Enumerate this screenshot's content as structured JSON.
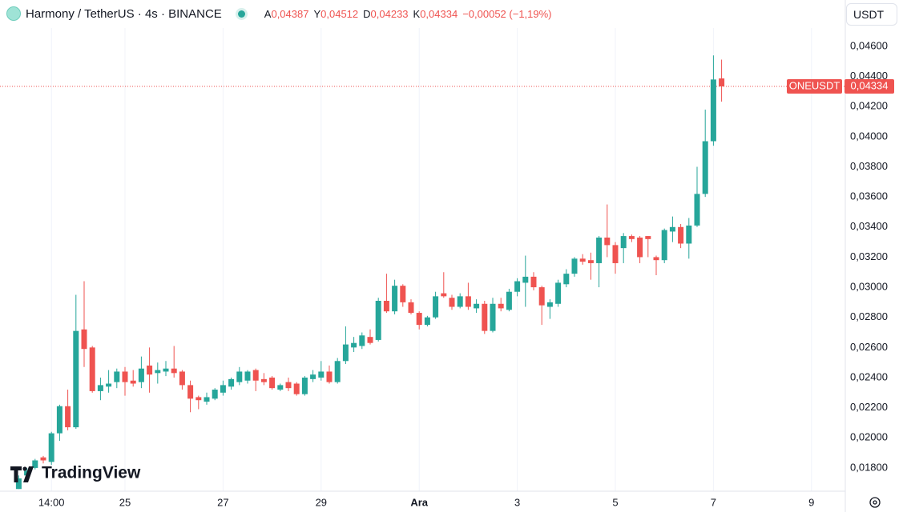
{
  "header": {
    "symbol": "Harmony / TetherUS · 4s · BINANCE",
    "open_key": "A",
    "open": "0,04387",
    "high_key": "Y",
    "high": "0,04512",
    "low_key": "D",
    "low": "0,04233",
    "close_key": "K",
    "close": "0,04334",
    "change": "−0,00052 (−1,19%)",
    "currency": "USDT",
    "brand": "TradingView"
  },
  "chart_data": {
    "type": "candlestick",
    "up_color": "#26a69a",
    "down_color": "#ef5350",
    "grid": true,
    "last_price_name": "ONEUSDT",
    "last_price_label": "0,04334",
    "ylim": [
      0.01656,
      0.04722
    ],
    "yticks": [
      {
        "value": 0.018,
        "label": "0,01800"
      },
      {
        "value": 0.02,
        "label": "0,02000"
      },
      {
        "value": 0.022,
        "label": "0,02200"
      },
      {
        "value": 0.024,
        "label": "0,02400"
      },
      {
        "value": 0.026,
        "label": "0,02600"
      },
      {
        "value": 0.028,
        "label": "0,02800"
      },
      {
        "value": 0.03,
        "label": "0,03000"
      },
      {
        "value": 0.032,
        "label": "0,03200"
      },
      {
        "value": 0.034,
        "label": "0,03400"
      },
      {
        "value": 0.036,
        "label": "0,03600"
      },
      {
        "value": 0.038,
        "label": "0,03800"
      },
      {
        "value": 0.04,
        "label": "0,04000"
      },
      {
        "value": 0.042,
        "label": "0,04200"
      },
      {
        "value": 0.044,
        "label": "0,04400"
      },
      {
        "value": 0.046,
        "label": "0,04600"
      }
    ],
    "categories": [
      null,
      null,
      null,
      null,
      "14:00",
      null,
      null,
      null,
      null,
      null,
      null,
      null,
      null,
      "25",
      null,
      null,
      null,
      null,
      null,
      null,
      null,
      null,
      null,
      null,
      null,
      "27",
      null,
      null,
      null,
      null,
      null,
      null,
      null,
      null,
      null,
      null,
      null,
      "29",
      null,
      null,
      null,
      null,
      null,
      null,
      null,
      null,
      null,
      null,
      null,
      "Ara",
      null,
      null,
      null,
      null,
      null,
      null,
      null,
      null,
      null,
      null,
      null,
      "3",
      null,
      null,
      null,
      null,
      null,
      null,
      null,
      null,
      null,
      null,
      null,
      "5",
      null,
      null,
      null,
      null,
      null,
      null,
      null,
      null,
      null,
      null,
      null,
      "7",
      null,
      null,
      null,
      null,
      null,
      null,
      null,
      null,
      null,
      null,
      null,
      "9"
    ],
    "open": [
      0.0166,
      0.0175,
      0.018,
      0.0187,
      0.0184,
      0.0203,
      0.0221,
      0.0207,
      0.0272,
      0.026,
      0.0231,
      0.0234,
      0.0237,
      0.0244,
      0.0238,
      0.0237,
      0.0248,
      0.0243,
      0.0244,
      0.0246,
      0.0244,
      0.0235,
      0.0227,
      0.0224,
      0.0226,
      0.023,
      0.0234,
      0.0237,
      0.0238,
      0.0245,
      0.0239,
      0.024,
      0.0232,
      0.0237,
      0.0236,
      0.0229,
      0.0239,
      0.024,
      0.0244,
      0.0237,
      0.0251,
      0.026,
      0.0261,
      0.0267,
      0.0265,
      0.0291,
      0.0284,
      0.0301,
      0.029,
      0.0283,
      0.0275,
      0.028,
      0.0296,
      0.0293,
      0.0287,
      0.0294,
      0.0286,
      0.0289,
      0.0271,
      0.0289,
      0.0285,
      0.0297,
      0.0303,
      0.0307,
      0.03,
      0.0287,
      0.0289,
      0.0302,
      0.0309,
      0.0319,
      0.0318,
      0.0316,
      0.0333,
      0.0328,
      0.0326,
      0.0334,
      0.0333,
      0.0334,
      0.032,
      0.0318,
      0.0337,
      0.034,
      0.0329,
      0.0341,
      0.0362,
      0.0397,
      0.04387,
      null,
      null,
      null,
      null,
      null,
      null,
      null,
      null,
      null,
      null,
      null
    ],
    "high": [
      0.0175,
      0.018,
      0.0186,
      0.0188,
      0.0204,
      0.0222,
      0.0232,
      0.0295,
      0.0304,
      0.0261,
      0.024,
      0.0245,
      0.0246,
      0.0247,
      0.0245,
      0.0254,
      0.026,
      0.025,
      0.0251,
      0.0261,
      0.0245,
      0.0238,
      0.0228,
      0.023,
      0.0233,
      0.0238,
      0.024,
      0.0247,
      0.0245,
      0.0246,
      0.0243,
      0.0241,
      0.0236,
      0.024,
      0.0237,
      0.0241,
      0.0245,
      0.0251,
      0.0248,
      0.0253,
      0.0274,
      0.0267,
      0.027,
      0.0272,
      0.0293,
      0.0309,
      0.0305,
      0.0302,
      0.0292,
      0.0284,
      0.0281,
      0.0297,
      0.031,
      0.0295,
      0.0296,
      0.0303,
      0.0292,
      0.0291,
      0.0293,
      0.0293,
      0.0299,
      0.0306,
      0.0321,
      0.031,
      0.0301,
      0.0292,
      0.0305,
      0.0312,
      0.032,
      0.0322,
      0.0323,
      0.0334,
      0.0355,
      0.033,
      0.0336,
      0.0335,
      0.0334,
      0.0334,
      0.0321,
      0.0339,
      0.0347,
      0.0342,
      0.0346,
      0.038,
      0.0418,
      0.0454,
      0.04512,
      null,
      null,
      null,
      null,
      null,
      null,
      null,
      null,
      null,
      null,
      null
    ],
    "low": [
      0.0166,
      0.0173,
      0.0179,
      0.0183,
      0.0182,
      0.0198,
      0.0205,
      0.0206,
      0.0247,
      0.023,
      0.0225,
      0.023,
      0.0233,
      0.0228,
      0.0234,
      0.0233,
      0.023,
      0.0236,
      0.0241,
      0.024,
      0.0232,
      0.0217,
      0.0219,
      0.0222,
      0.0225,
      0.0228,
      0.0232,
      0.0235,
      0.0236,
      0.0231,
      0.0235,
      0.0232,
      0.0231,
      0.0231,
      0.0228,
      0.0228,
      0.0237,
      0.0238,
      0.0236,
      0.0236,
      0.0249,
      0.0257,
      0.0259,
      0.0262,
      0.0264,
      0.0283,
      0.0282,
      0.0287,
      0.0282,
      0.0272,
      0.0274,
      0.0279,
      0.0293,
      0.0285,
      0.0286,
      0.0285,
      0.0283,
      0.0269,
      0.027,
      0.0284,
      0.0284,
      0.0294,
      0.0287,
      0.0298,
      0.0275,
      0.0279,
      0.0287,
      0.03,
      0.0307,
      0.0315,
      0.0305,
      0.03,
      0.032,
      0.0309,
      0.0316,
      0.033,
      0.0316,
      0.032,
      0.0308,
      0.0316,
      0.033,
      0.0326,
      0.0319,
      0.034,
      0.036,
      0.0394,
      0.04233,
      null,
      null,
      null,
      null,
      null,
      null,
      null,
      null,
      null,
      null,
      null
    ],
    "close": [
      0.0173,
      0.0178,
      0.0185,
      0.0185,
      0.0203,
      0.0221,
      0.0207,
      0.0271,
      0.0259,
      0.0231,
      0.0235,
      0.0236,
      0.0244,
      0.0237,
      0.0236,
      0.0246,
      0.0242,
      0.0245,
      0.0246,
      0.0243,
      0.0235,
      0.0226,
      0.0225,
      0.0227,
      0.0232,
      0.0235,
      0.0239,
      0.0244,
      0.0244,
      0.0238,
      0.0237,
      0.0233,
      0.0235,
      0.0233,
      0.0229,
      0.024,
      0.0242,
      0.0244,
      0.0237,
      0.0251,
      0.0262,
      0.0263,
      0.0268,
      0.0263,
      0.0291,
      0.0284,
      0.0301,
      0.029,
      0.0283,
      0.0275,
      0.028,
      0.0294,
      0.0294,
      0.0287,
      0.0294,
      0.0287,
      0.0289,
      0.0271,
      0.0289,
      0.0286,
      0.0297,
      0.0304,
      0.0307,
      0.03,
      0.0288,
      0.029,
      0.0303,
      0.0309,
      0.0319,
      0.0317,
      0.0316,
      0.0333,
      0.0328,
      0.0316,
      0.0334,
      0.0332,
      0.032,
      0.0332,
      0.0318,
      0.0338,
      0.034,
      0.0329,
      0.0341,
      0.0362,
      0.0397,
      0.0438,
      0.04334,
      null,
      null,
      null,
      null,
      null,
      null,
      null,
      null,
      null,
      null,
      null
    ]
  }
}
